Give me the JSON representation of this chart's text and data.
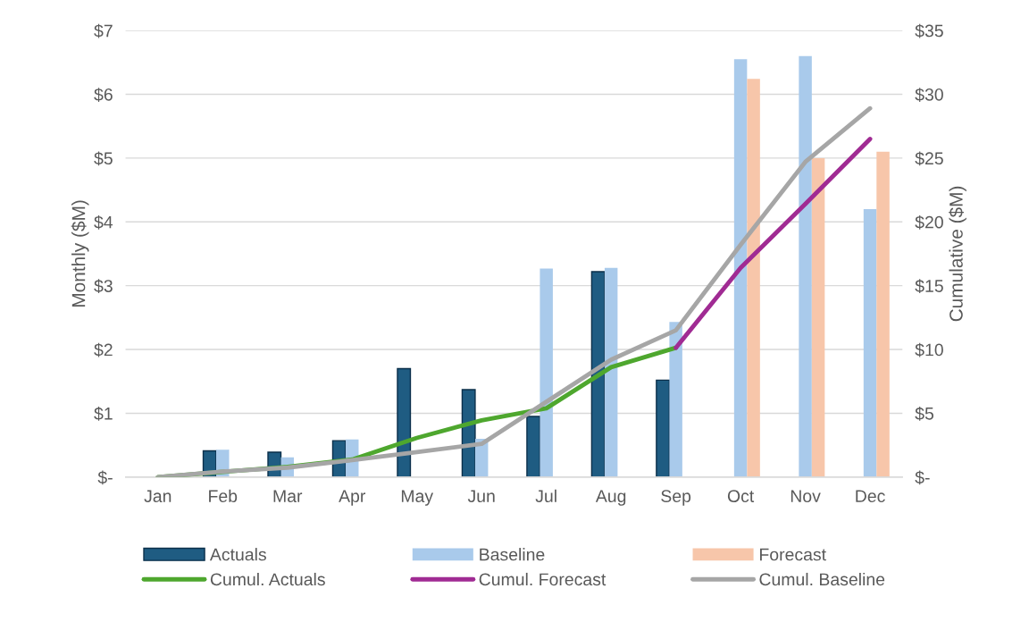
{
  "chart_data": {
    "type": "bar",
    "categories": [
      "Jan",
      "Feb",
      "Mar",
      "Apr",
      "May",
      "Jun",
      "Jul",
      "Aug",
      "Sep",
      "Oct",
      "Nov",
      "Dec"
    ],
    "ylabel": "Monthly ($M)",
    "y2label": "Cumulative ($M)",
    "ylim": [
      0,
      7
    ],
    "yticks": [
      {
        "value": 0,
        "label": "$-"
      },
      {
        "value": 1,
        "label": "$1"
      },
      {
        "value": 2,
        "label": "$2"
      },
      {
        "value": 3,
        "label": "$3"
      },
      {
        "value": 4,
        "label": "$4"
      },
      {
        "value": 5,
        "label": "$5"
      },
      {
        "value": 6,
        "label": "$6"
      },
      {
        "value": 7,
        "label": "$7"
      }
    ],
    "y2lim": [
      0,
      35
    ],
    "y2ticks": [
      {
        "value": 0,
        "label": "$-"
      },
      {
        "value": 5,
        "label": "$5"
      },
      {
        "value": 10,
        "label": "$10"
      },
      {
        "value": 15,
        "label": "$15"
      },
      {
        "value": 20,
        "label": "$20"
      },
      {
        "value": 25,
        "label": "$25"
      },
      {
        "value": 30,
        "label": "$30"
      },
      {
        "value": 35,
        "label": "$35"
      }
    ],
    "grid": "y",
    "legend": "bottom",
    "series": [
      {
        "name": "Actuals",
        "color": "#1f5c82",
        "values": [
          null,
          0.41,
          0.39,
          0.57,
          1.7,
          1.37,
          0.95,
          3.22,
          1.52,
          null,
          null,
          null
        ]
      },
      {
        "name": "Baseline",
        "color": "#a9caeb",
        "values": [
          null,
          0.43,
          0.31,
          0.59,
          null,
          0.6,
          3.27,
          3.28,
          2.43,
          6.55,
          6.6,
          4.2
        ]
      },
      {
        "name": "Forecast",
        "color": "#f7c6aa",
        "values": [
          null,
          null,
          null,
          null,
          null,
          null,
          null,
          null,
          null,
          6.24,
          5.0,
          5.1
        ]
      },
      {
        "name": "Cumul. Actuals",
        "type": "line",
        "axis": "y2",
        "color": "#4ea72e",
        "values": [
          0,
          0.41,
          0.8,
          1.37,
          3.07,
          4.44,
          5.39,
          8.61,
          10.13,
          null,
          null,
          null
        ]
      },
      {
        "name": "Cumul. Forecast",
        "type": "line",
        "axis": "y2",
        "color": "#a02b93",
        "values": [
          null,
          null,
          null,
          null,
          null,
          null,
          null,
          null,
          10.13,
          16.4,
          21.4,
          26.5
        ]
      },
      {
        "name": "Cumul. Baseline",
        "type": "line",
        "axis": "y2",
        "color": "#a6a6a6",
        "values": [
          0,
          0.43,
          0.74,
          1.33,
          1.96,
          2.6,
          5.9,
          9.2,
          11.5,
          18.2,
          24.7,
          28.9
        ]
      }
    ]
  }
}
